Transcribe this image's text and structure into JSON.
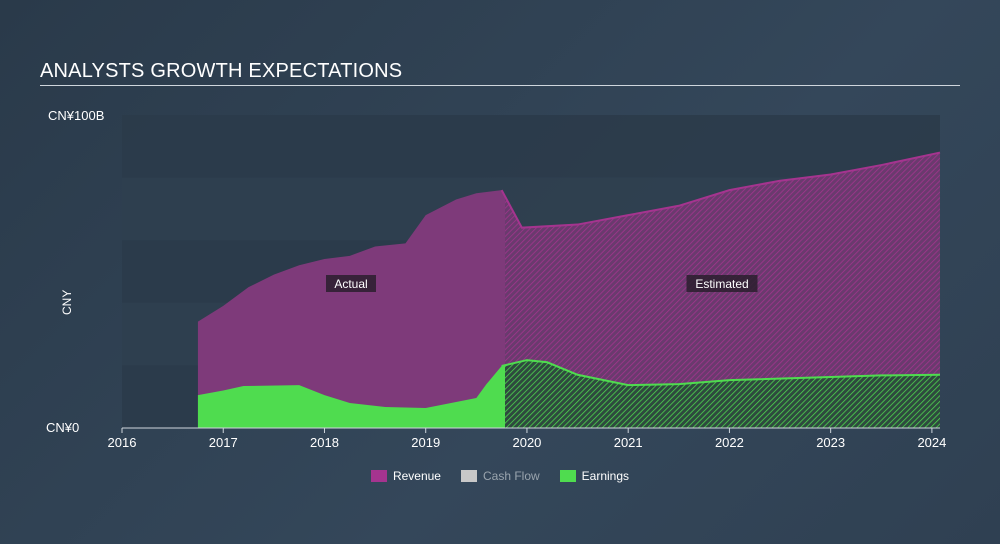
{
  "title": "ANALYSTS GROWTH EXPECTATIONS",
  "chart_data": {
    "type": "area",
    "title": "ANALYSTS GROWTH EXPECTATIONS",
    "ylabel": "CNY",
    "xlabel": "",
    "ylim": [
      0,
      100
    ],
    "xlim": [
      2016,
      2024.08
    ],
    "y_tick_labels": {
      "top": "CN¥100B",
      "bottom": "CN¥0"
    },
    "x_ticks": [
      "2016",
      "2017",
      "2018",
      "2019",
      "2020",
      "2021",
      "2022",
      "2023",
      "2024"
    ],
    "actual_end": 2019.75,
    "annotations": {
      "actual": "Actual",
      "estimated": "Estimated"
    },
    "series": [
      {
        "name": "Revenue",
        "color": "#a5348f",
        "points": [
          [
            2016.75,
            34
          ],
          [
            2017,
            39
          ],
          [
            2017.25,
            45
          ],
          [
            2017.5,
            49
          ],
          [
            2017.75,
            52
          ],
          [
            2018,
            54
          ],
          [
            2018.25,
            55
          ],
          [
            2018.5,
            58
          ],
          [
            2018.8,
            59
          ],
          [
            2019,
            68
          ],
          [
            2019.3,
            73
          ],
          [
            2019.5,
            75
          ],
          [
            2019.75,
            76
          ],
          [
            2019.95,
            64
          ],
          [
            2020.5,
            65
          ],
          [
            2021,
            68
          ],
          [
            2021.5,
            71
          ],
          [
            2022,
            76
          ],
          [
            2022.5,
            79
          ],
          [
            2023,
            81
          ],
          [
            2023.5,
            84
          ],
          [
            2024.08,
            88
          ]
        ]
      },
      {
        "name": "Cash Flow",
        "color": "#c8c8c8",
        "disabled": true,
        "points": []
      },
      {
        "name": "Earnings",
        "color": "#4fdc4f",
        "points": [
          [
            2016.75,
            10.5
          ],
          [
            2017,
            12
          ],
          [
            2017.2,
            13.4
          ],
          [
            2017.75,
            13.7
          ],
          [
            2018,
            10.5
          ],
          [
            2018.25,
            8
          ],
          [
            2018.6,
            6.7
          ],
          [
            2019,
            6.4
          ],
          [
            2019.3,
            8.3
          ],
          [
            2019.5,
            9.6
          ],
          [
            2019.6,
            14
          ],
          [
            2019.75,
            19.8
          ],
          [
            2020,
            21.7
          ],
          [
            2020.2,
            21
          ],
          [
            2020.5,
            17
          ],
          [
            2021,
            13.7
          ],
          [
            2021.5,
            14
          ],
          [
            2022,
            15.3
          ],
          [
            2023,
            16.3
          ],
          [
            2023.5,
            16.8
          ],
          [
            2024.08,
            17
          ]
        ]
      }
    ],
    "legend": {
      "placement": "bottom-center"
    }
  }
}
